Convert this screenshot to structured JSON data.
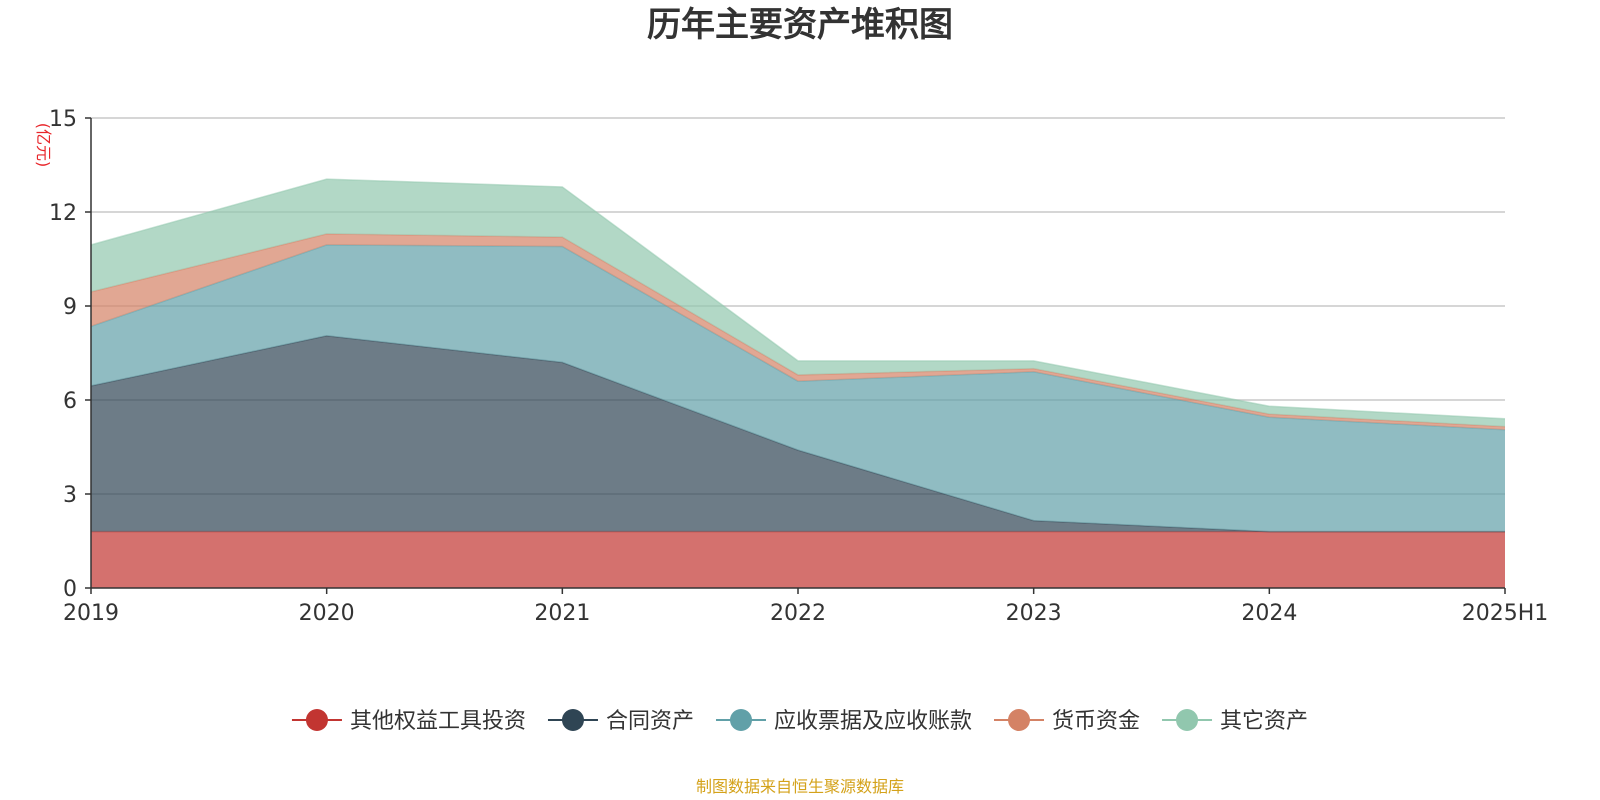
{
  "chart_data": {
    "type": "area",
    "stacked": true,
    "title": "历年主要资产堆积图",
    "y_unit_label": "(亿元)",
    "categories": [
      "2019",
      "2020",
      "2021",
      "2022",
      "2023",
      "2024",
      "2025H1"
    ],
    "y_ticks": [
      "0",
      "3",
      "6",
      "9",
      "12",
      "15"
    ],
    "ylim": [
      0,
      15
    ],
    "grid": true,
    "legend_position": "bottom",
    "series": [
      {
        "name": "其他权益工具投资",
        "color": "#c23531",
        "values": [
          1.8,
          1.8,
          1.8,
          1.8,
          1.8,
          1.8,
          1.8
        ]
      },
      {
        "name": "合同资产",
        "color": "#2f4554",
        "values": [
          4.65,
          6.25,
          5.4,
          2.6,
          0.35,
          0.0,
          0.0
        ]
      },
      {
        "name": "应收票据及应收账款",
        "color": "#61a0a8",
        "values": [
          1.9,
          2.9,
          3.7,
          2.2,
          4.75,
          3.65,
          3.25
        ]
      },
      {
        "name": "货币资金",
        "color": "#d48265",
        "values": [
          1.1,
          0.35,
          0.3,
          0.2,
          0.1,
          0.1,
          0.1
        ]
      },
      {
        "name": "其它资产",
        "color": "#91c7ae",
        "values": [
          1.5,
          1.75,
          1.6,
          0.45,
          0.25,
          0.25,
          0.25
        ]
      }
    ]
  },
  "footer": {
    "source": "制图数据来自恒生聚源数据库"
  }
}
